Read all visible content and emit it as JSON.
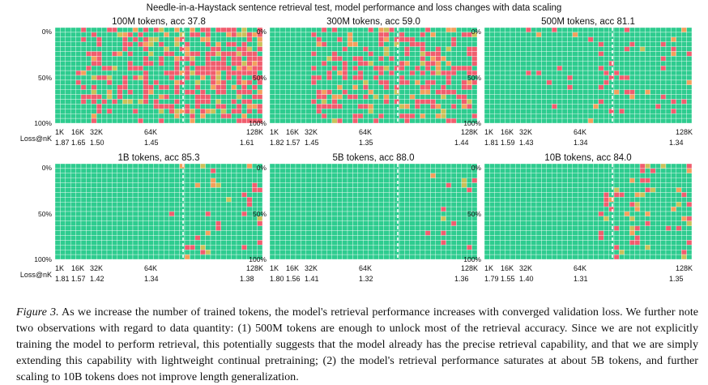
{
  "figure": {
    "title": "Needle-in-a-Haystack sentence retrieval test, model performance and loss changes with data scaling",
    "y_ticks": [
      "0%",
      "50%",
      "100%"
    ],
    "x_ticks": [
      "1K",
      "16K",
      "32K",
      "64K",
      "128K"
    ],
    "loss_label": "Loss@nK"
  },
  "chart_data": [
    {
      "type": "heatmap",
      "title": "100M tokens, acc 37.8",
      "x": [
        "1K",
        "16K",
        "32K",
        "64K",
        "128K"
      ],
      "y": [
        "0%",
        "50%",
        "100%"
      ],
      "loss_values": [
        "1.87",
        "1.65",
        "1.50",
        "1.45",
        "1.61"
      ],
      "accuracy": 37.8,
      "density": 0.7,
      "start": 0.1,
      "seed": 11,
      "grid": true
    },
    {
      "type": "heatmap",
      "title": "300M tokens, acc 59.0",
      "x": [
        "1K",
        "16K",
        "32K",
        "64K",
        "128K"
      ],
      "y": [
        "0%",
        "50%",
        "100%"
      ],
      "loss_values": [
        "1.82",
        "1.57",
        "1.45",
        "1.35",
        "1.44"
      ],
      "accuracy": 59.0,
      "density": 0.5,
      "start": 0.18,
      "seed": 23,
      "grid": true
    },
    {
      "type": "heatmap",
      "title": "500M tokens, acc 81.1",
      "x": [
        "1K",
        "16K",
        "32K",
        "64K",
        "128K"
      ],
      "y": [
        "0%",
        "50%",
        "100%"
      ],
      "loss_values": [
        "1.81",
        "1.59",
        "1.43",
        "1.34",
        "1.34"
      ],
      "accuracy": 81.1,
      "density": 0.14,
      "start": 0.2,
      "seed": 37,
      "grid": true
    },
    {
      "type": "heatmap",
      "title": "1B tokens, acc 85.3",
      "x": [
        "1K",
        "16K",
        "32K",
        "64K",
        "128K"
      ],
      "y": [
        "0%",
        "50%",
        "100%"
      ],
      "loss_values": [
        "1.81",
        "1.57",
        "1.42",
        "1.34",
        "1.38"
      ],
      "accuracy": 85.3,
      "density": 0.16,
      "start": 0.55,
      "seed": 41,
      "grid": true
    },
    {
      "type": "heatmap",
      "title": "5B tokens, acc 88.0",
      "x": [
        "1K",
        "16K",
        "32K",
        "64K",
        "128K"
      ],
      "y": [
        "0%",
        "50%",
        "100%"
      ],
      "loss_values": [
        "1.80",
        "1.56",
        "1.41",
        "1.32",
        "1.36"
      ],
      "accuracy": 88.0,
      "density": 0.12,
      "start": 0.75,
      "seed": 53,
      "grid": true
    },
    {
      "type": "heatmap",
      "title": "10B tokens, acc 84.0",
      "x": [
        "1K",
        "16K",
        "32K",
        "64K",
        "128K"
      ],
      "y": [
        "0%",
        "50%",
        "100%"
      ],
      "loss_values": [
        "1.79",
        "1.55",
        "1.40",
        "1.31",
        "1.35"
      ],
      "accuracy": 84.0,
      "density": 0.16,
      "start": 0.55,
      "seed": 67,
      "grid": true
    }
  ],
  "colors": {
    "pass": "#2ecc8f",
    "fail": "#f05d6e",
    "partial": "#f3a05c",
    "partial_high": "#c9c15a",
    "divider": "#ffffff"
  },
  "caption": {
    "label": "Figure 3.",
    "text": "As we increase the number of trained tokens, the model's retrieval performance increases with converged validation loss. We further note two observations with regard to data quantity: (1) 500M tokens are enough to unlock most of the retrieval accuracy. Since we are not explicitly training the model to perform retrieval, this potentially suggests that the model already has the precise retrieval capability, and that we are simply extending this capability with lightweight continual pretraining; (2) the model's retrieval performance saturates at about 5B tokens, and further scaling to 10B tokens does not improve length generalization."
  }
}
